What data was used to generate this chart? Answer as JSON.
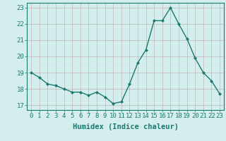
{
  "x": [
    0,
    1,
    2,
    3,
    4,
    5,
    6,
    7,
    8,
    9,
    10,
    11,
    12,
    13,
    14,
    15,
    16,
    17,
    18,
    19,
    20,
    21,
    22,
    23
  ],
  "y": [
    19.0,
    18.7,
    18.3,
    18.2,
    18.0,
    17.8,
    17.8,
    17.6,
    17.8,
    17.5,
    17.1,
    17.2,
    18.3,
    19.6,
    20.4,
    22.2,
    22.2,
    23.0,
    22.0,
    21.1,
    19.9,
    19.0,
    18.5,
    17.7
  ],
  "line_color": "#1a7a6e",
  "marker": "D",
  "marker_size": 2.0,
  "line_width": 1.0,
  "xlim": [
    -0.5,
    23.5
  ],
  "ylim": [
    16.7,
    23.3
  ],
  "yticks": [
    17,
    18,
    19,
    20,
    21,
    22,
    23
  ],
  "xticks": [
    0,
    1,
    2,
    3,
    4,
    5,
    6,
    7,
    8,
    9,
    10,
    11,
    12,
    13,
    14,
    15,
    16,
    17,
    18,
    19,
    20,
    21,
    22,
    23
  ],
  "xlabel": "Humidex (Indice chaleur)",
  "xlabel_fontsize": 7.5,
  "tick_fontsize": 6.5,
  "bg_color": "#d4eeed",
  "grid_color": "#b8a8a8",
  "grid_alpha": 0.8,
  "spine_color": "#1a7a6e"
}
